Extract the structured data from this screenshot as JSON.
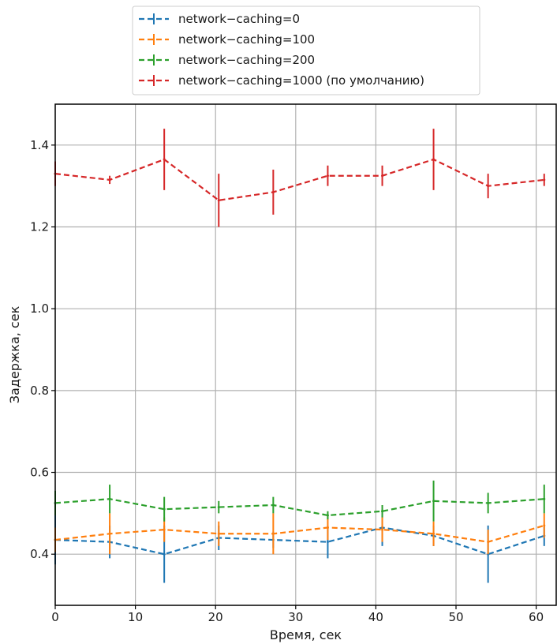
{
  "chart_data": {
    "type": "line",
    "title": "",
    "xlabel": "Время, сек",
    "ylabel": "Задержка, сек",
    "xlim": [
      0,
      62.5
    ],
    "ylim": [
      0.275,
      1.5
    ],
    "xticks": [
      0,
      10,
      20,
      30,
      40,
      50,
      60
    ],
    "yticks": [
      0.4,
      0.6,
      0.8,
      1.0,
      1.2,
      1.4
    ],
    "ytick_labels": [
      "0.4",
      "0.6",
      "0.8",
      "1.0",
      "1.2",
      "1.4"
    ],
    "grid": true,
    "legend_position": "top-center, outside above plot",
    "x": [
      0,
      6.8,
      13.6,
      20.4,
      27.2,
      34.0,
      40.8,
      47.2,
      54.0,
      61.0
    ],
    "series": [
      {
        "name": "network−caching=0",
        "color": "#1f77b4",
        "values": [
          0.435,
          0.43,
          0.4,
          0.44,
          0.435,
          0.43,
          0.465,
          0.445,
          0.4,
          0.445
        ],
        "errors": [
          0.06,
          0.04,
          0.07,
          0.03,
          0.02,
          0.04,
          0.045,
          0.025,
          0.07,
          0.025
        ]
      },
      {
        "name": "network−caching=100",
        "color": "#ff7f0e",
        "values": [
          0.435,
          0.45,
          0.46,
          0.45,
          0.45,
          0.465,
          0.46,
          0.45,
          0.43,
          0.47
        ],
        "errors": [
          0.03,
          0.05,
          0.03,
          0.03,
          0.05,
          0.03,
          0.03,
          0.03,
          0.03,
          0.03
        ]
      },
      {
        "name": "network−caching=200",
        "color": "#2ca02c",
        "values": [
          0.525,
          0.535,
          0.51,
          0.515,
          0.52,
          0.495,
          0.505,
          0.53,
          0.525,
          0.535
        ],
        "errors": [
          0.03,
          0.035,
          0.03,
          0.015,
          0.02,
          0.01,
          0.015,
          0.05,
          0.025,
          0.035
        ]
      },
      {
        "name": "network−caching=1000 (по умолчанию)",
        "color": "#d62728",
        "values": [
          1.33,
          1.315,
          1.365,
          1.265,
          1.285,
          1.325,
          1.325,
          1.365,
          1.3,
          1.315
        ],
        "errors": [
          0.03,
          0.01,
          0.075,
          0.065,
          0.055,
          0.025,
          0.025,
          0.075,
          0.03,
          0.015
        ]
      }
    ]
  }
}
